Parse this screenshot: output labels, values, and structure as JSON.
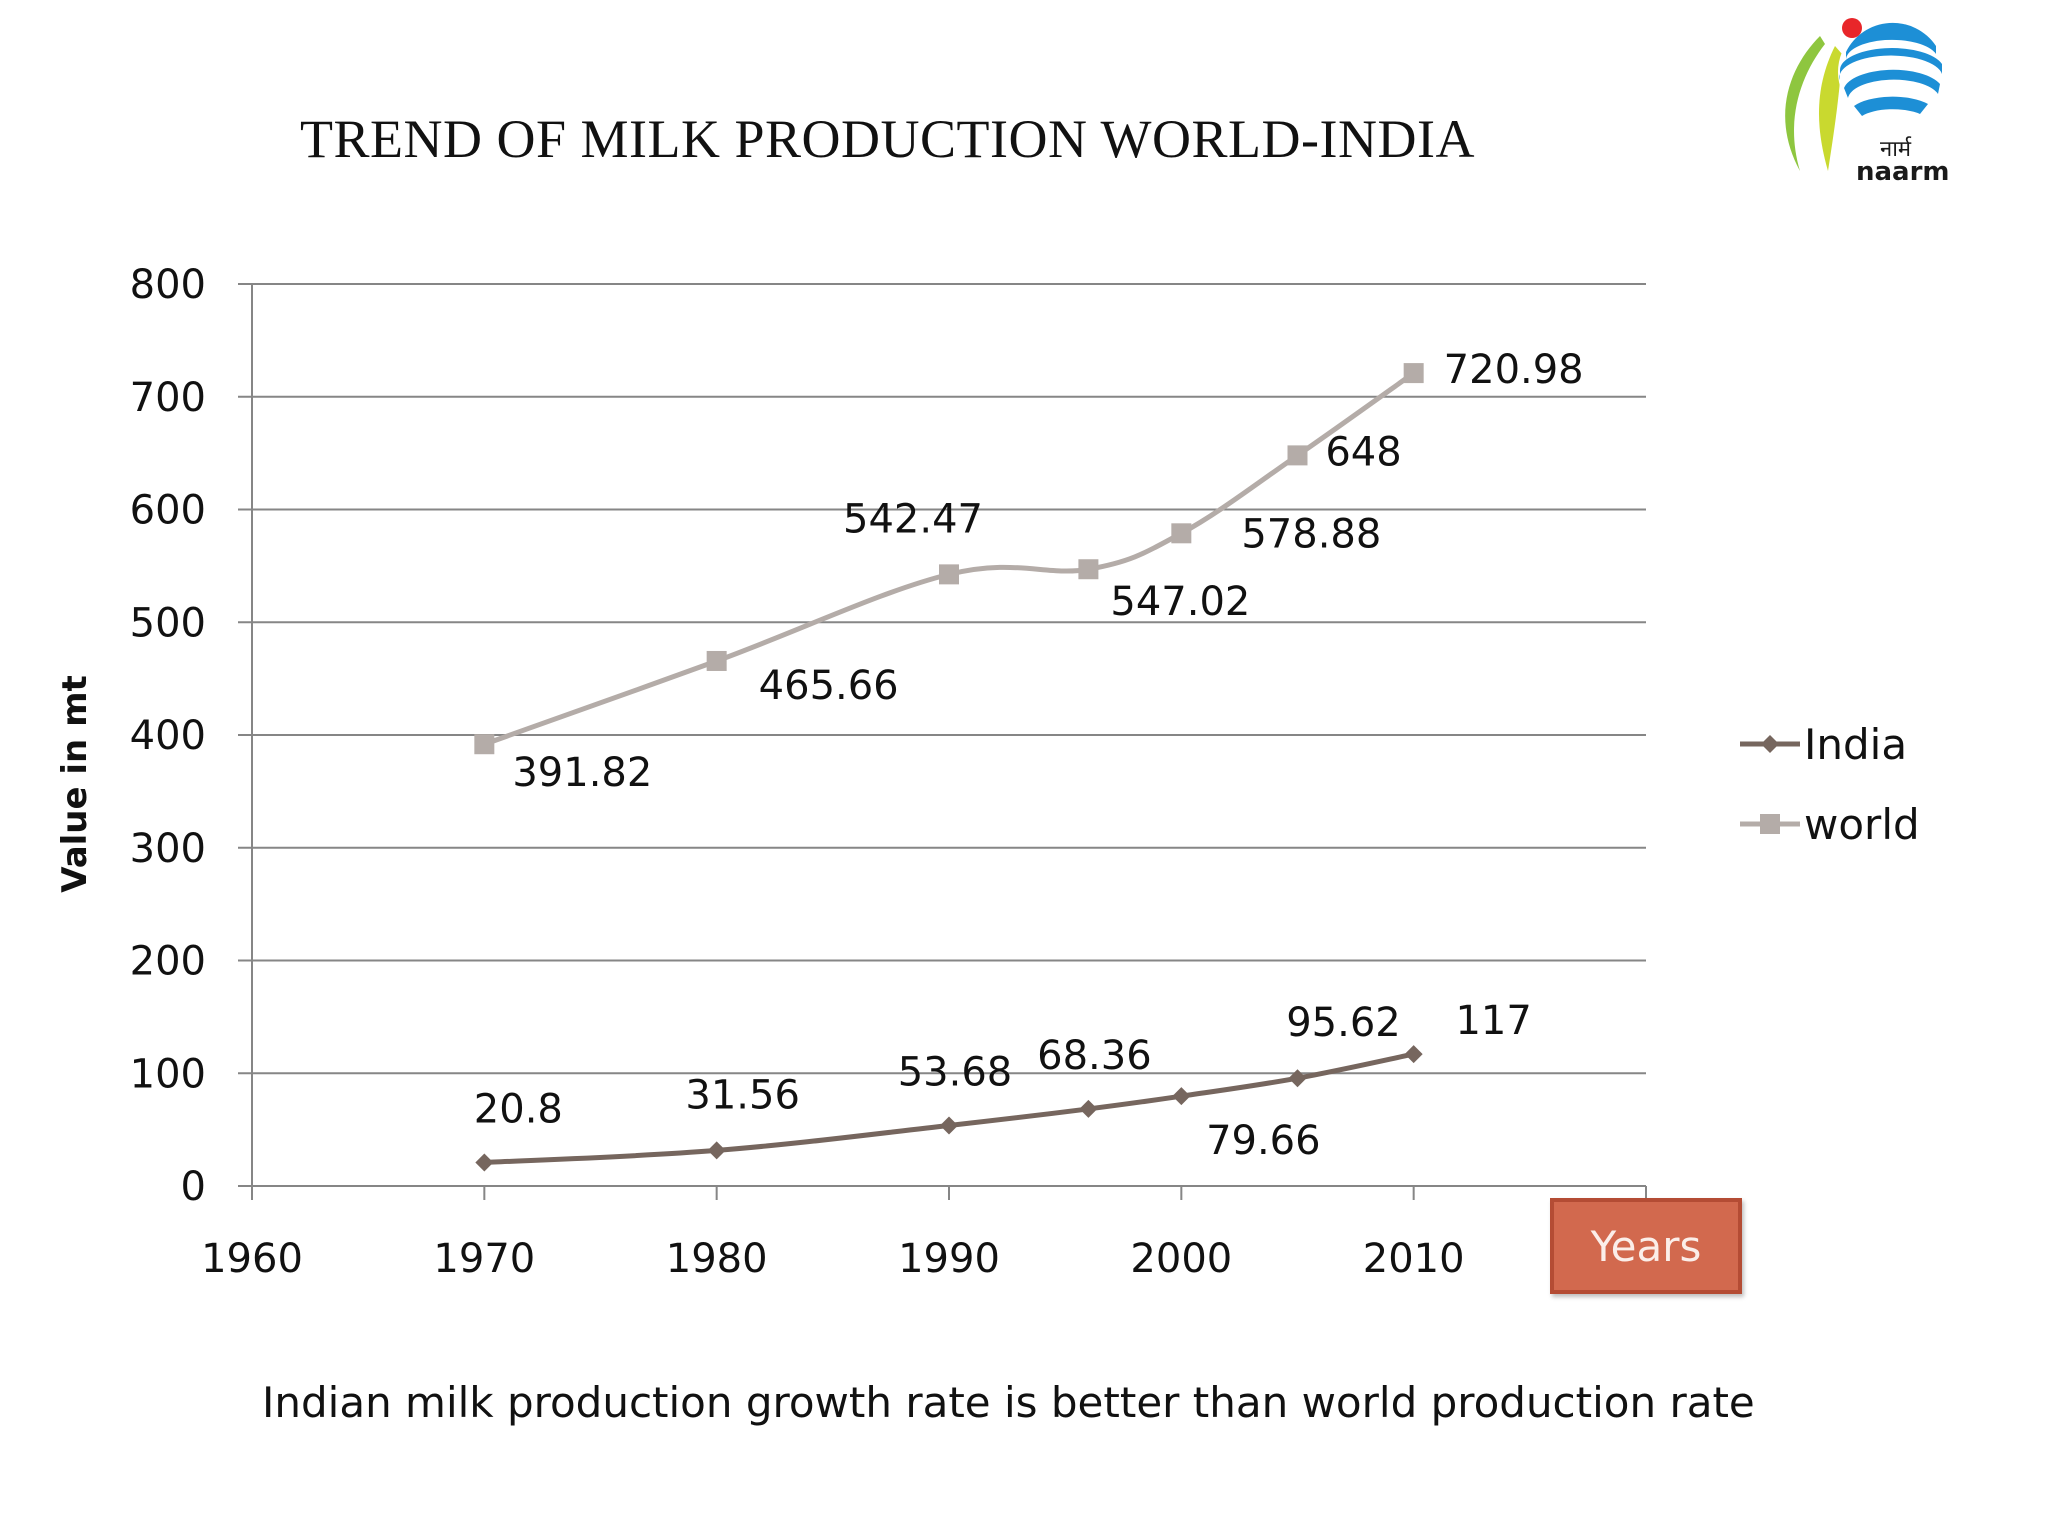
{
  "slide": {
    "title": "TREND OF MILK PRODUCTION WORLD-INDIA",
    "caption": "Indian milk production growth rate is better than world production rate",
    "x_axis_badge": "Years",
    "logo": {
      "icon": "naarm-logo-icon",
      "text_devanagari": "नार्म",
      "text_latin": "naarm"
    }
  },
  "chart_data": {
    "type": "line",
    "title": "",
    "xlabel": "Years",
    "ylabel": "Value in mt",
    "xlim": [
      1960,
      2010
    ],
    "ylim": [
      0,
      800
    ],
    "x_ticks": [
      1960,
      1970,
      1980,
      1990,
      2000,
      2010
    ],
    "y_ticks": [
      0,
      100,
      200,
      300,
      400,
      500,
      600,
      700,
      800
    ],
    "x_tick_labels": [
      "1960",
      "1970",
      "1980",
      "1990",
      "2000",
      "2010"
    ],
    "y_tick_labels": [
      "0",
      "100",
      "200",
      "300",
      "400",
      "500",
      "600",
      "700",
      "800"
    ],
    "grid": "horizontal",
    "legend_position": "right",
    "smoothed": true,
    "series": [
      {
        "name": "India",
        "marker": "diamond",
        "color": "#76665e",
        "x": [
          1970,
          1980,
          1990,
          1996,
          2000,
          2005,
          2010
        ],
        "values": [
          20.8,
          31.56,
          53.68,
          68.36,
          79.66,
          95.62,
          117
        ],
        "labels": [
          "20.8",
          "31.56",
          "53.68",
          "68.36",
          "79.66",
          "95.62",
          "117"
        ]
      },
      {
        "name": "world",
        "marker": "square",
        "color": "#b4aca8",
        "x": [
          1970,
          1980,
          1990,
          1996,
          2000,
          2005,
          2010
        ],
        "values": [
          391.82,
          465.66,
          542.47,
          547.02,
          578.88,
          648,
          720.98
        ],
        "labels": [
          "391.82",
          "465.66",
          "542.47",
          "547.02",
          "578.88",
          "648",
          "720.98"
        ]
      }
    ],
    "colors": {
      "grid": "#868686",
      "axis": "#868686",
      "badge": "#d2694e"
    }
  }
}
